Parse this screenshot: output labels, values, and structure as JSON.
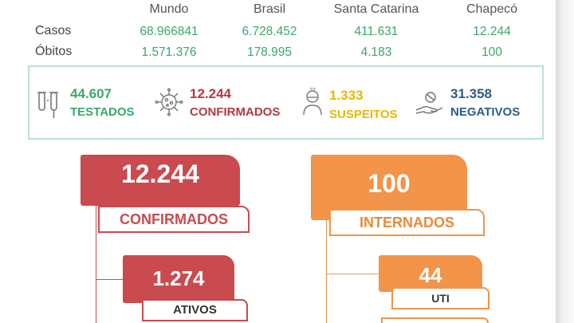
{
  "table": {
    "columns": [
      "Mundo",
      "Brasil",
      "Santa Catarina",
      "Chapecó"
    ],
    "rows": [
      {
        "label": "Casos",
        "values": [
          "68.966841",
          "6.728.452",
          "411.631",
          "12.244"
        ]
      },
      {
        "label": "Óbitos",
        "values": [
          "1.571.376",
          "178.995",
          "4.183",
          "100"
        ]
      }
    ]
  },
  "indicators": [
    {
      "number": "44.607",
      "label": "TESTADOS",
      "icon": "test-tubes-icon",
      "color": "#3aa86b"
    },
    {
      "number": "12.244",
      "label": "CONFIRMADOS",
      "icon": "virus-icon",
      "color": "#b5393f"
    },
    {
      "number": "1.333",
      "label": "SUSPEITOS",
      "icon": "suspect-person-icon",
      "color": "#e6b800"
    },
    {
      "number": "31.358",
      "label": "NEGATIVOS",
      "icon": "hand-shield-icon",
      "color": "#2e5c8a"
    }
  ],
  "flow": {
    "confirmed": {
      "number": "12.244",
      "label": "CONFIRMADOS"
    },
    "active": {
      "number": "1.274",
      "label": "ATIVOS"
    },
    "hospitalized": {
      "number": "100",
      "label": "INTERNADOS"
    },
    "icu": {
      "number": "44",
      "label": "UTI"
    }
  },
  "colors": {
    "red": "#c94a4f",
    "orange": "#f2944a",
    "green": "#3aa86b",
    "panel_border": "#b9e2cc"
  }
}
